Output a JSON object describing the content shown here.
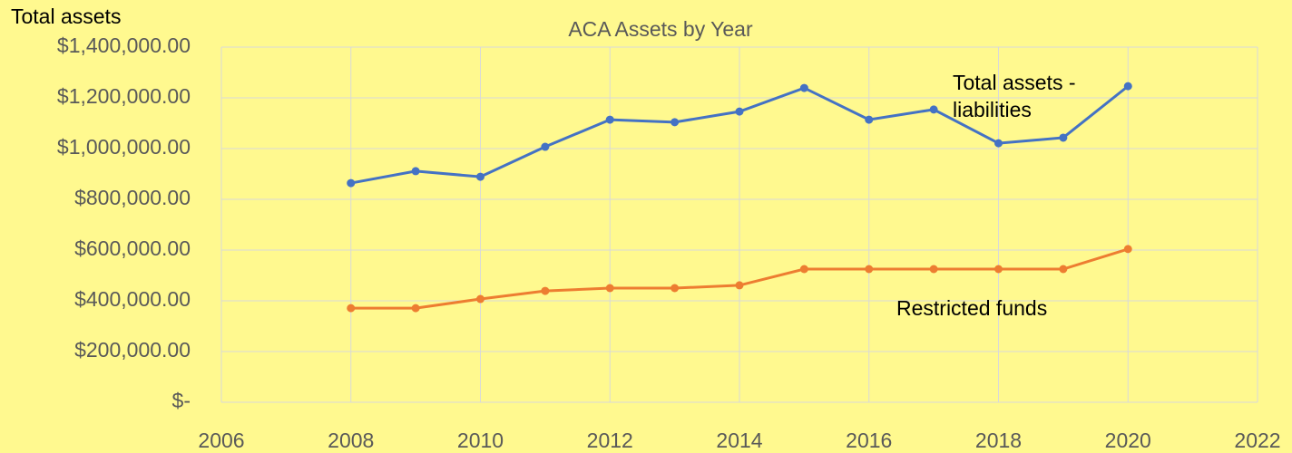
{
  "chart_data": {
    "type": "line",
    "title": "ACA Assets by Year",
    "y_label": "Total assets",
    "x": [
      2008,
      2009,
      2010,
      2011,
      2012,
      2013,
      2014,
      2015,
      2016,
      2017,
      2018,
      2019,
      2020
    ],
    "series": [
      {
        "name": "Total assets - liabilities",
        "color": "#4472c4",
        "values": [
          864000,
          911000,
          889000,
          1007000,
          1114000,
          1104000,
          1146000,
          1239000,
          1114000,
          1154000,
          1021000,
          1043000,
          1246000
        ]
      },
      {
        "name": "Restricted funds",
        "color": "#ed7d31",
        "values": [
          371000,
          371000,
          407000,
          439000,
          450000,
          450000,
          461000,
          525000,
          525000,
          525000,
          525000,
          525000,
          604000
        ]
      }
    ],
    "xlim": [
      2006,
      2022
    ],
    "xticks": [
      2006,
      2008,
      2010,
      2012,
      2014,
      2016,
      2018,
      2020,
      2022
    ],
    "ylim": [
      0,
      1400000
    ],
    "yticks": [
      {
        "value": 0,
        "label": "$-"
      },
      {
        "value": 200000,
        "label": "$200,000.00"
      },
      {
        "value": 400000,
        "label": "$400,000.00"
      },
      {
        "value": 600000,
        "label": "$600,000.00"
      },
      {
        "value": 800000,
        "label": "$800,000.00"
      },
      {
        "value": 1000000,
        "label": "$1,000,000.00"
      },
      {
        "value": 1200000,
        "label": "$1,200,000.00"
      },
      {
        "value": 1400000,
        "label": "$1,400,000.00"
      }
    ],
    "grid": true
  }
}
